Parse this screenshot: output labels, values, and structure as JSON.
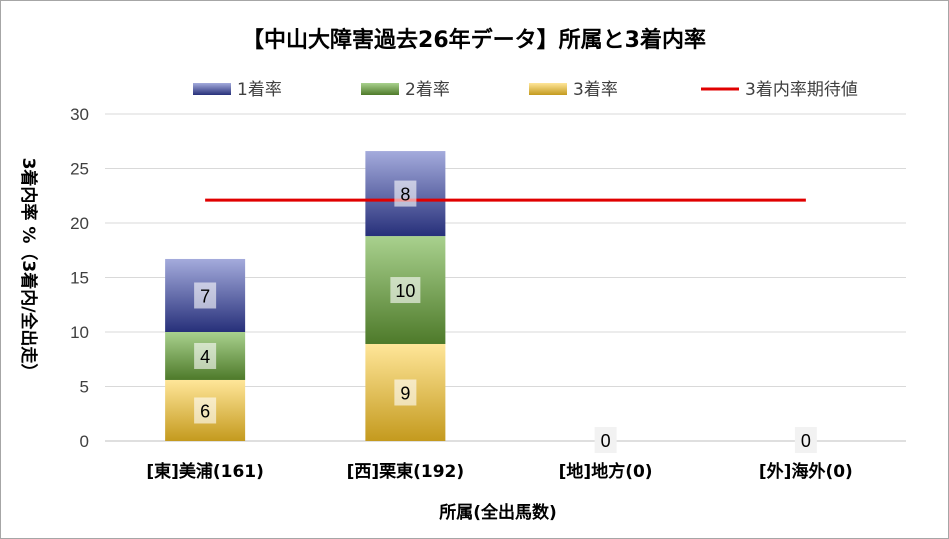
{
  "chart_data": {
    "type": "bar",
    "stacked": true,
    "title": "【中山大障害過去26年データ】所属と3着内率",
    "xlabel": "所属(全出馬数)",
    "ylabel": "3着内率 %（3着内/全出走）",
    "ylim": [
      0,
      30
    ],
    "yticks": [
      "0",
      "5",
      "10",
      "15",
      "20",
      "25",
      "30"
    ],
    "grid": true,
    "legend_position": "top",
    "categories": [
      "[東]美浦(161)",
      "[西]栗東(192)",
      "[地]地方(0)",
      "[外]海外(0)"
    ],
    "series": [
      {
        "name": "3着率",
        "values": [
          5.6,
          8.9,
          0,
          0
        ],
        "labels": [
          "6",
          "9",
          "",
          ""
        ],
        "color_top": "#ffe699",
        "color_bottom": "#c49a1e"
      },
      {
        "name": "2着率",
        "values": [
          4.4,
          9.9,
          0,
          0
        ],
        "labels": [
          "4",
          "10",
          "",
          ""
        ],
        "color_top": "#a9d18e",
        "color_bottom": "#4e7a2a"
      },
      {
        "name": "1着率",
        "values": [
          6.7,
          7.8,
          0,
          0
        ],
        "labels": [
          "7",
          "8",
          "",
          ""
        ],
        "color_top": "#a4abdc",
        "color_bottom": "#27307a"
      }
    ],
    "total_labels": [
      "",
      "",
      "0",
      "0"
    ],
    "reference_line": {
      "name": "3着内率期待値",
      "value": 22.1,
      "color": "#e00000"
    },
    "legend_order": [
      "1着率",
      "2着率",
      "3着率",
      "3着内率期待値"
    ]
  }
}
